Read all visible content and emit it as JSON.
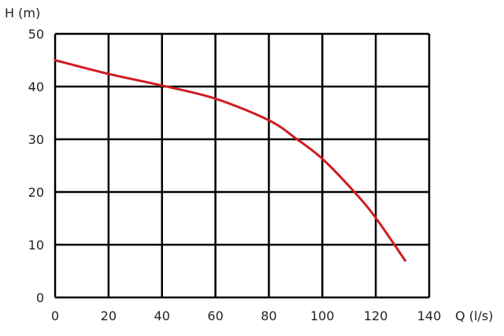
{
  "chart_data": {
    "type": "line",
    "title": "",
    "xlabel": "Q (l/s)",
    "ylabel": "H (m)",
    "xlim": [
      0,
      140
    ],
    "ylim": [
      0,
      50
    ],
    "xticks": [
      0,
      20,
      40,
      60,
      80,
      100,
      120,
      140
    ],
    "yticks": [
      0,
      10,
      20,
      30,
      40,
      50
    ],
    "grid": true,
    "series": [
      {
        "color": "#d01c1f",
        "x": [
          0,
          20,
          40,
          60,
          80,
          90,
          100,
          112,
          120,
          131
        ],
        "y": [
          45,
          42.4,
          40.2,
          37.7,
          33.6,
          30.2,
          26.3,
          20,
          15.1,
          7
        ]
      }
    ]
  }
}
